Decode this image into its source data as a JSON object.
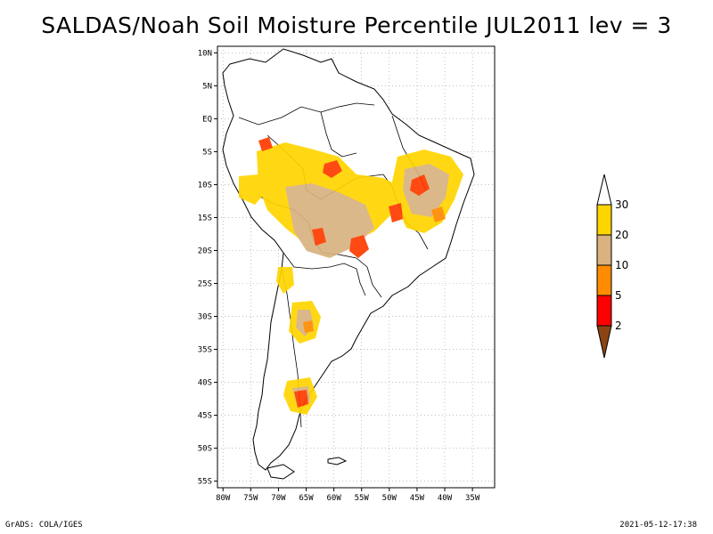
{
  "title": "SALDAS/Noah Soil Moisture Percentile JUL2011 lev = 3",
  "footer": {
    "left": "GrADS: COLA/IGES",
    "right": "2021-05-12-17:38"
  },
  "map": {
    "lon_range": [
      -81,
      -31
    ],
    "lat_range": [
      -56,
      11
    ],
    "lat_ticks": [
      {
        "value": 10,
        "label": "10N"
      },
      {
        "value": 5,
        "label": "5N"
      },
      {
        "value": 0,
        "label": "EQ"
      },
      {
        "value": -5,
        "label": "5S"
      },
      {
        "value": -10,
        "label": "10S"
      },
      {
        "value": -15,
        "label": "15S"
      },
      {
        "value": -20,
        "label": "20S"
      },
      {
        "value": -25,
        "label": "25S"
      },
      {
        "value": -30,
        "label": "30S"
      },
      {
        "value": -35,
        "label": "35S"
      },
      {
        "value": -40,
        "label": "40S"
      },
      {
        "value": -45,
        "label": "45S"
      },
      {
        "value": -50,
        "label": "50S"
      },
      {
        "value": -55,
        "label": "55S"
      }
    ],
    "lon_ticks": [
      {
        "value": -80,
        "label": "80W"
      },
      {
        "value": -75,
        "label": "75W"
      },
      {
        "value": -70,
        "label": "70W"
      },
      {
        "value": -65,
        "label": "65W"
      },
      {
        "value": -60,
        "label": "60W"
      },
      {
        "value": -55,
        "label": "55W"
      },
      {
        "value": -50,
        "label": "50W"
      },
      {
        "value": -45,
        "label": "45W"
      },
      {
        "value": -40,
        "label": "40W"
      },
      {
        "value": -35,
        "label": "35W"
      }
    ],
    "colors": {
      "gt30": "#ffffff",
      "20_30": "#ffd500",
      "10_20": "#d9b27f",
      "5_10": "#ff8c00",
      "2_5": "#ff0000",
      "lt2": "#8b4513"
    }
  },
  "colorbar": {
    "labels": [
      "30",
      "20",
      "10",
      "5",
      "2"
    ],
    "colors": [
      "#ffffff",
      "#ffd500",
      "#d9b27f",
      "#ff8c00",
      "#ff0000",
      "#8b4513"
    ]
  }
}
